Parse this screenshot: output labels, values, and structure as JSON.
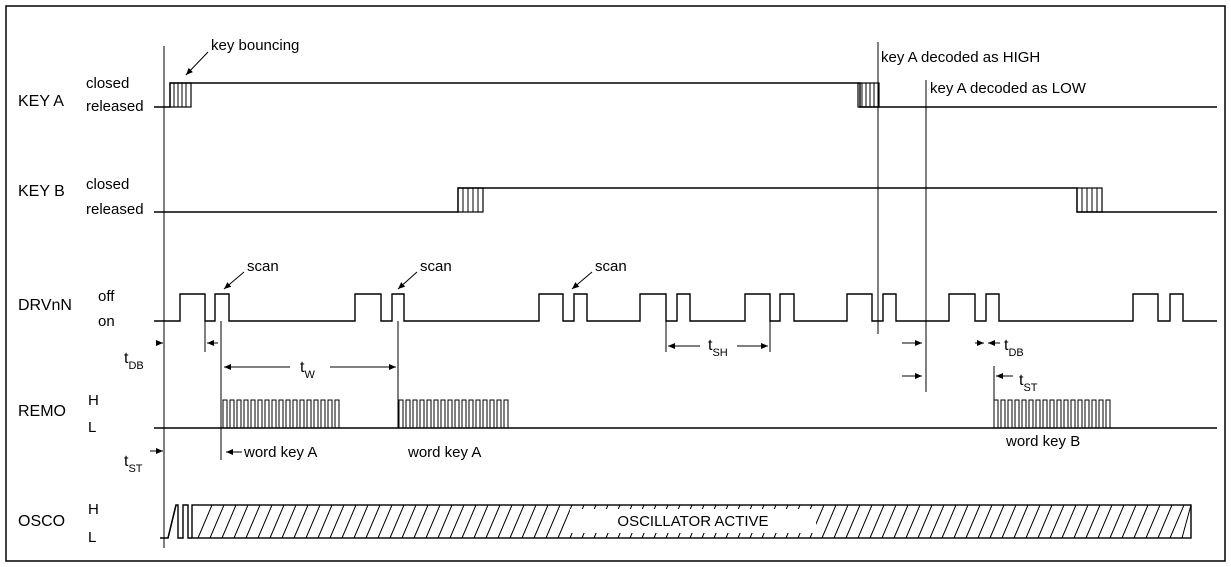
{
  "signals": {
    "key_a": {
      "name": "KEY A",
      "high": "closed",
      "low": "released"
    },
    "key_b": {
      "name": "KEY B",
      "high": "closed",
      "low": "released"
    },
    "drv": {
      "name": "DRVnN",
      "high": "off",
      "low": "on"
    },
    "remo": {
      "name": "REMO",
      "high": "H",
      "low": "L"
    },
    "osco": {
      "name": "OSCO",
      "high": "H",
      "low": "L"
    }
  },
  "annotations": {
    "key_bouncing": "key bouncing",
    "decoded_high": "key A decoded as HIGH",
    "decoded_low": "key A decoded as LOW",
    "scan": "scan",
    "word_key_a": "word key A",
    "word_key_b": "word key B",
    "oscillator_active": "OSCILLATOR ACTIVE"
  },
  "timings": {
    "t_db": {
      "base": "t",
      "sub": "DB"
    },
    "t_w": {
      "base": "t",
      "sub": "W"
    },
    "t_sh": {
      "base": "t",
      "sub": "SH"
    },
    "t_st": {
      "base": "t",
      "sub": "ST"
    }
  }
}
